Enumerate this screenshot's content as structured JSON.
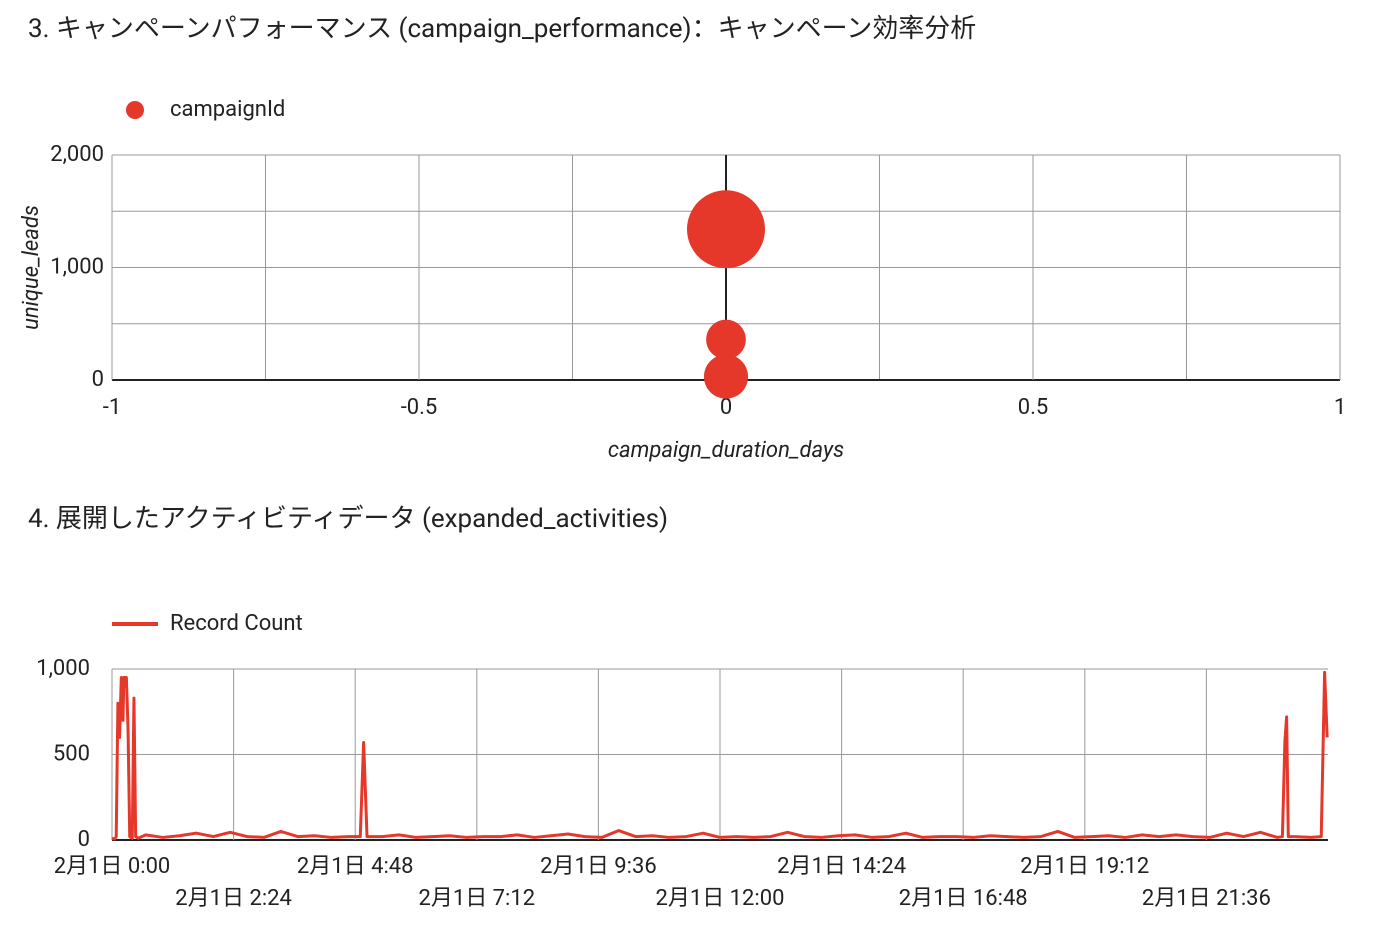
{
  "chart_data": [
    {
      "type": "scatter",
      "title": "3. キャンペーンパフォーマンス (campaign_performance)：キャンペーン効率分析",
      "x_label": "campaign_duration_days",
      "y_label": "unique_leads",
      "xlim": [
        -1,
        1
      ],
      "xticks": [
        -1,
        -0.5,
        0,
        0.5,
        1
      ],
      "ylim": [
        0,
        2000
      ],
      "yticks": [
        0,
        {
          "value": 1000,
          "label": "1,000"
        },
        {
          "value": 2000,
          "label": "2,000"
        }
      ],
      "grid": true,
      "minor_grid": true,
      "legend": "top-left",
      "series": [
        {
          "name": "campaignId",
          "color": "#e5372a",
          "x": [
            0,
            0,
            0
          ],
          "values": [
            1340,
            360,
            30
          ],
          "sizes": [
            100,
            26,
            32
          ]
        }
      ]
    },
    {
      "type": "line",
      "title": "4. 展開したアクティビティデータ (expanded_activities)",
      "xlim": [
        0,
        1440
      ],
      "xticks": [
        {
          "value": 0,
          "label": "2月1日 0:00"
        },
        {
          "value": 144,
          "label": "2月1日 2:24"
        },
        {
          "value": 288,
          "label": "2月1日 4:48"
        },
        {
          "value": 432,
          "label": "2月1日 7:12"
        },
        {
          "value": 576,
          "label": "2月1日 9:36"
        },
        {
          "value": 720,
          "label": "2月1日 12:00"
        },
        {
          "value": 864,
          "label": "2月1日 14:24"
        },
        {
          "value": 1008,
          "label": "2月1日 16:48"
        },
        {
          "value": 1152,
          "label": "2月1日 19:12"
        },
        {
          "value": 1296,
          "label": "2月1日 21:36"
        }
      ],
      "ylim": [
        0,
        1000
      ],
      "yticks": [
        0,
        500,
        {
          "value": 1000,
          "label": "1,000"
        }
      ],
      "grid": true,
      "legend": "top-left",
      "series": [
        {
          "name": "Record Count",
          "color": "#e5372a",
          "x": [
            0,
            3,
            5,
            7,
            9,
            11,
            13,
            14,
            16,
            17,
            19,
            21,
            24,
            26,
            28,
            31,
            40,
            60,
            80,
            100,
            120,
            140,
            160,
            180,
            200,
            220,
            240,
            260,
            280,
            294,
            298,
            302,
            320,
            340,
            360,
            380,
            400,
            420,
            440,
            460,
            480,
            500,
            520,
            540,
            560,
            580,
            600,
            620,
            640,
            660,
            680,
            700,
            720,
            740,
            760,
            780,
            800,
            820,
            840,
            860,
            880,
            900,
            920,
            940,
            960,
            980,
            1000,
            1020,
            1040,
            1060,
            1080,
            1100,
            1120,
            1140,
            1160,
            1180,
            1200,
            1220,
            1240,
            1260,
            1280,
            1300,
            1320,
            1340,
            1360,
            1380,
            1386,
            1389,
            1391,
            1393,
            1400,
            1420,
            1432,
            1436,
            1439
          ],
          "values": [
            10,
            5,
            20,
            800,
            600,
            950,
            700,
            950,
            950,
            950,
            650,
            20,
            10,
            830,
            20,
            10,
            30,
            15,
            25,
            40,
            20,
            45,
            20,
            15,
            50,
            20,
            25,
            15,
            20,
            20,
            570,
            20,
            20,
            30,
            15,
            20,
            25,
            15,
            20,
            20,
            30,
            15,
            25,
            35,
            20,
            15,
            55,
            20,
            25,
            15,
            20,
            40,
            15,
            20,
            15,
            20,
            45,
            20,
            15,
            25,
            30,
            15,
            20,
            40,
            15,
            20,
            20,
            15,
            25,
            20,
            15,
            20,
            50,
            15,
            20,
            25,
            15,
            30,
            20,
            30,
            20,
            15,
            40,
            20,
            45,
            15,
            20,
            580,
            720,
            20,
            20,
            15,
            20,
            980,
            600
          ]
        }
      ]
    }
  ]
}
